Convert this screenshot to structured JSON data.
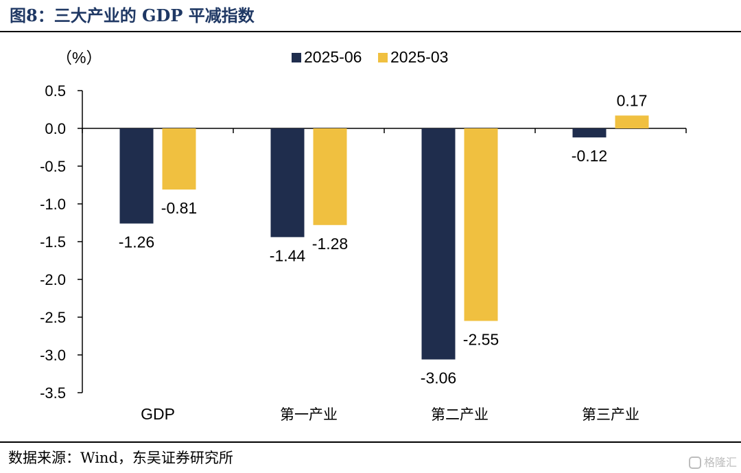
{
  "figure": {
    "title": "图8：三大产业的 GDP 平减指数",
    "source": "数据来源：Wind，东吴证券研究所",
    "watermark": "格隆汇"
  },
  "chart_data": {
    "type": "bar",
    "unit_label": "（%）",
    "categories": [
      "GDP",
      "第一产业",
      "第二产业",
      "第三产业"
    ],
    "series": [
      {
        "name": "2025-06",
        "color": "#1f2d4d",
        "values": [
          -1.26,
          -1.44,
          -3.06,
          -0.12
        ]
      },
      {
        "name": "2025-03",
        "color": "#f0c040",
        "values": [
          -0.81,
          -1.28,
          -2.55,
          0.17
        ]
      }
    ],
    "ylim": [
      -3.5,
      0.5
    ],
    "yticks": [
      "0.5",
      "0.0",
      "-0.5",
      "-1.0",
      "-1.5",
      "-2.0",
      "-2.5",
      "-3.0",
      "-3.5"
    ],
    "data_labels": [
      [
        "-1.26",
        "-1.44",
        "-3.06",
        "-0.12"
      ],
      [
        "-0.81",
        "-1.28",
        "-2.55",
        "0.17"
      ]
    ],
    "grid": false,
    "legend_position": "top-center"
  }
}
